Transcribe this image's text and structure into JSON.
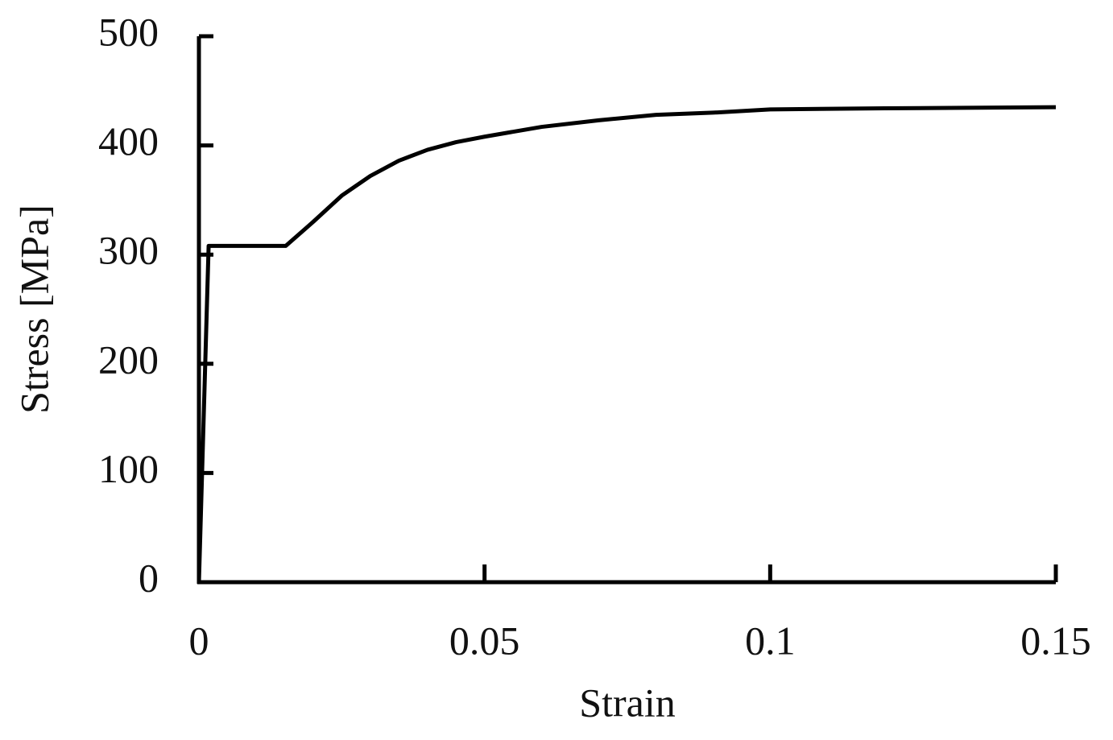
{
  "chart_data": {
    "type": "line",
    "xlabel": "Strain",
    "ylabel": "Stress [MPa]",
    "x": [
      0,
      0.0017,
      0.0152,
      0.02,
      0.025,
      0.03,
      0.035,
      0.04,
      0.045,
      0.05,
      0.06,
      0.07,
      0.08,
      0.09,
      0.1,
      0.12,
      0.15
    ],
    "series": [
      {
        "color": "#000000",
        "values": [
          0,
          308,
          308,
          330,
          354,
          372,
          386,
          396,
          403,
          408,
          417,
          423,
          428,
          430,
          433,
          434,
          435
        ]
      }
    ],
    "xlim": [
      0,
      0.15
    ],
    "xticks": [
      0,
      0.05,
      0.1,
      0.15
    ],
    "ylim": [
      0,
      500
    ],
    "yticks": [
      0,
      100,
      200,
      300,
      400,
      500
    ]
  }
}
